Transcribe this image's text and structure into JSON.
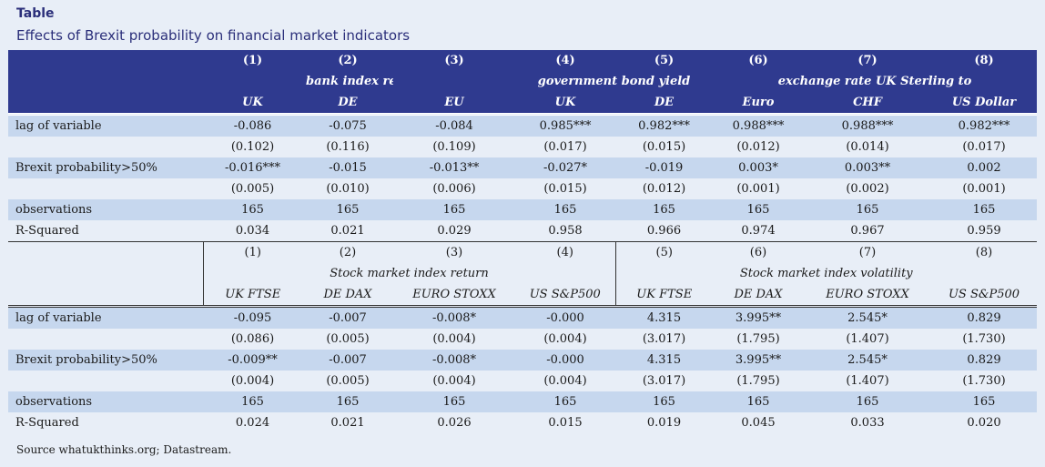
{
  "header": {
    "label": "Table",
    "title": "Effects of Brexit probability on financial market indicators"
  },
  "panel1": {
    "numbers": [
      "(1)",
      "(2)",
      "(3)",
      "(4)",
      "(5)",
      "(6)",
      "(7)",
      "(8)"
    ],
    "groups": [
      "bank index return",
      "government bond yield",
      "exchange rate UK Sterling to"
    ],
    "columns": [
      "UK",
      "DE",
      "EU",
      "UK",
      "DE",
      "Euro",
      "CHF",
      "US Dollar"
    ],
    "rows": [
      {
        "label": "lag of variable",
        "values": [
          "-0.086",
          "-0.075",
          "-0.084",
          "0.985***",
          "0.982***",
          "0.988***",
          "0.988***",
          "0.982***"
        ]
      },
      {
        "label": "",
        "values": [
          "(0.102)",
          "(0.116)",
          "(0.109)",
          "(0.017)",
          "(0.015)",
          "(0.012)",
          "(0.014)",
          "(0.017)"
        ]
      },
      {
        "label": "Brexit probability>50%",
        "values": [
          "-0.016***",
          "-0.015",
          "-0.013**",
          "-0.027*",
          "-0.019",
          "0.003*",
          "0.003**",
          "0.002"
        ]
      },
      {
        "label": "",
        "values": [
          "(0.005)",
          "(0.010)",
          "(0.006)",
          "(0.015)",
          "(0.012)",
          "(0.001)",
          "(0.002)",
          "(0.001)"
        ]
      },
      {
        "label": "observations",
        "values": [
          "165",
          "165",
          "165",
          "165",
          "165",
          "165",
          "165",
          "165"
        ]
      },
      {
        "label": "R-Squared",
        "values": [
          "0.034",
          "0.021",
          "0.029",
          "0.958",
          "0.966",
          "0.974",
          "0.967",
          "0.959"
        ]
      }
    ]
  },
  "panel2": {
    "numbers": [
      "(1)",
      "(2)",
      "(3)",
      "(4)",
      "(5)",
      "(6)",
      "(7)",
      "(8)"
    ],
    "groups": [
      "Stock market index return",
      "Stock market index volatility"
    ],
    "columns": [
      "UK FTSE",
      "DE DAX",
      "EURO STOXX",
      "US S&P500",
      "UK FTSE",
      "DE DAX",
      "EURO STOXX",
      "US S&P500"
    ],
    "rows": [
      {
        "label": "lag of variable",
        "values": [
          "-0.095",
          "-0.007",
          "-0.008*",
          "-0.000",
          "4.315",
          "3.995**",
          "2.545*",
          "0.829"
        ]
      },
      {
        "label": "",
        "values": [
          "(0.086)",
          "(0.005)",
          "(0.004)",
          "(0.004)",
          "(3.017)",
          "(1.795)",
          "(1.407)",
          "(1.730)"
        ]
      },
      {
        "label": "Brexit probability>50%",
        "values": [
          "-0.009**",
          "-0.007",
          "-0.008*",
          "-0.000",
          "4.315",
          "3.995**",
          "2.545*",
          "0.829"
        ]
      },
      {
        "label": "",
        "values": [
          "(0.004)",
          "(0.005)",
          "(0.004)",
          "(0.004)",
          "(3.017)",
          "(1.795)",
          "(1.407)",
          "(1.730)"
        ]
      },
      {
        "label": "observations",
        "values": [
          "165",
          "165",
          "165",
          "165",
          "165",
          "165",
          "165",
          "165"
        ]
      },
      {
        "label": "R-Squared",
        "values": [
          "0.024",
          "0.021",
          "0.026",
          "0.015",
          "0.019",
          "0.045",
          "0.033",
          "0.020"
        ]
      }
    ]
  },
  "source": "Source whatukthinks.org; Datastream.",
  "colors": {
    "header_bg": "#2f3a8f",
    "band": "#c6d7ee",
    "page": "#e8eef7",
    "title": "#2b2f7a"
  }
}
